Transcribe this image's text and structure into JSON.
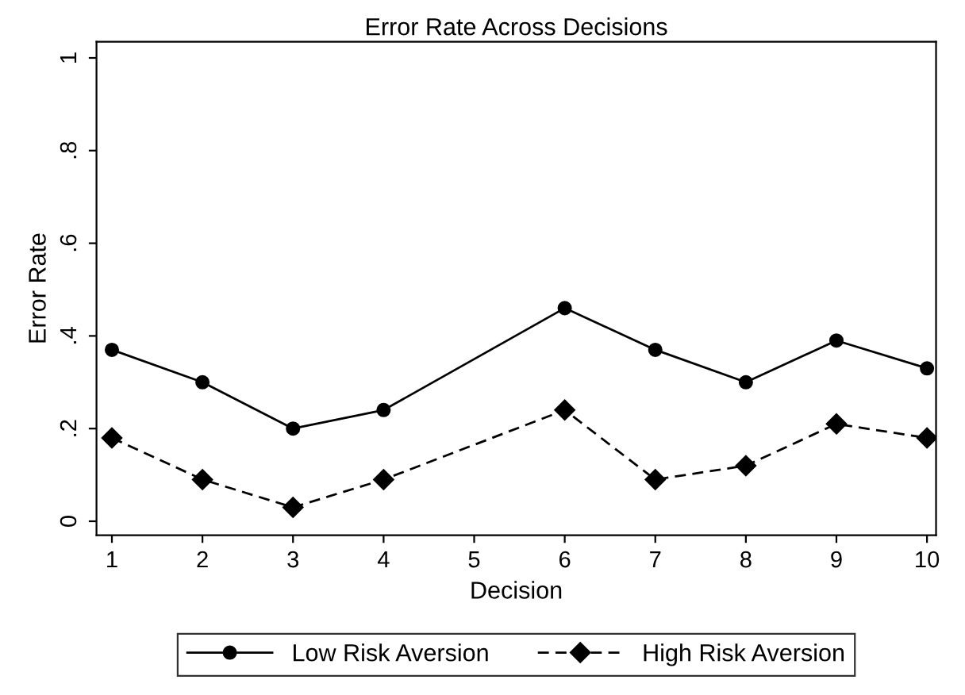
{
  "chart_data": {
    "type": "line",
    "title": "Error Rate Across Decisions",
    "xlabel": "Decision",
    "ylabel": "Error Rate",
    "x": [
      1,
      2,
      3,
      4,
      6,
      7,
      8,
      9,
      10
    ],
    "series": [
      {
        "name": "Low Risk Aversion",
        "color": "#000000",
        "values": [
          0.37,
          0.3,
          0.2,
          0.24,
          0.46,
          0.37,
          0.3,
          0.39,
          0.33
        ],
        "marker": "circle",
        "line_style": "solid"
      },
      {
        "name": "High Risk Aversion",
        "color": "#000000",
        "values": [
          0.18,
          0.09,
          0.03,
          0.09,
          0.24,
          0.09,
          0.12,
          0.21,
          0.18
        ],
        "marker": "diamond",
        "line_style": "dashed"
      }
    ],
    "xlim": [
      0.83,
      10.1
    ],
    "xticks": [
      1,
      2,
      3,
      4,
      5,
      6,
      7,
      8,
      9,
      10
    ],
    "ylim": [
      -0.03,
      1.035
    ],
    "yticks": [
      0,
      {
        "value": 0.2,
        "label": ".2"
      },
      {
        "value": 0.4,
        "label": ".4"
      },
      {
        "value": 0.6,
        "label": ".6"
      },
      {
        "value": 0.8,
        "label": ".8"
      },
      1
    ],
    "grid": false,
    "legend": "bottom"
  }
}
